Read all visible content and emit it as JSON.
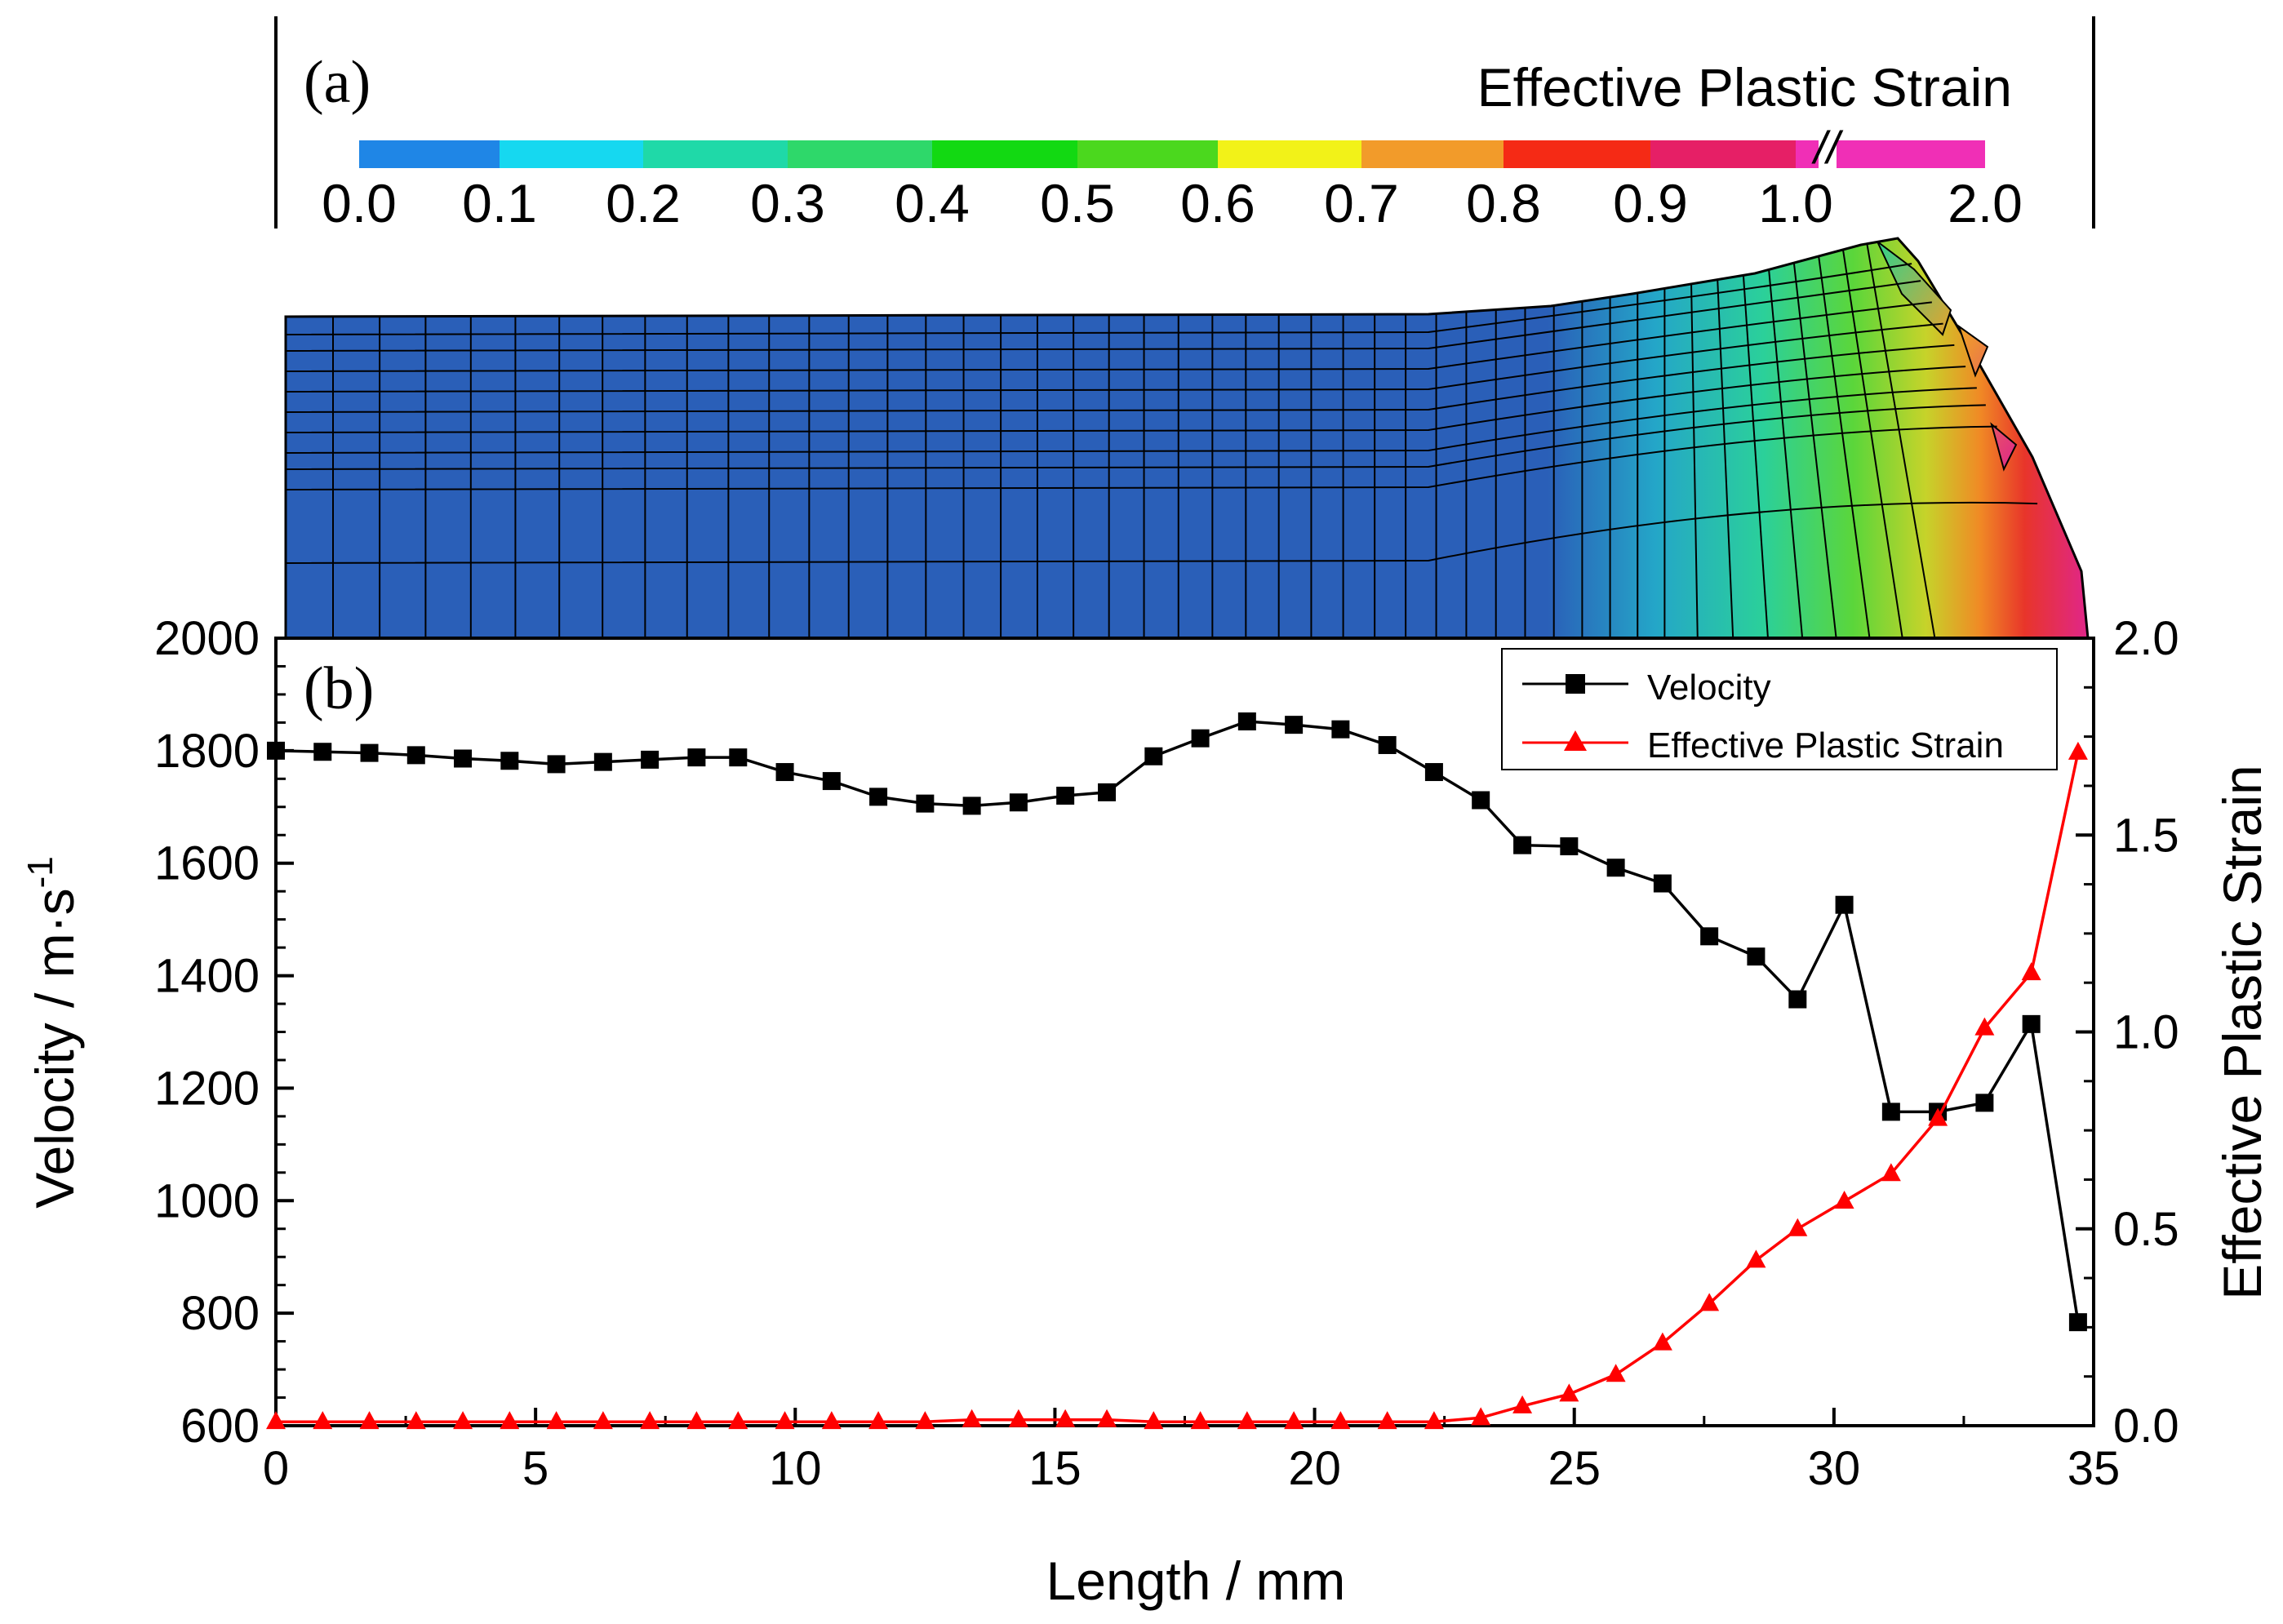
{
  "panel_a": {
    "label": "(a)",
    "colorbar_title": "Effective Plastic Strain",
    "colorbar_ticks": [
      "0.0",
      "0.1",
      "0.2",
      "0.3",
      "0.4",
      "0.5",
      "0.6",
      "0.7",
      "0.8",
      "0.9",
      "1.0",
      "2.0"
    ],
    "colorbar_colors": [
      "#1f86e6",
      "#16d8f0",
      "#1fd9a8",
      "#2ed86a",
      "#12d912",
      "#4bd81e",
      "#f2f218",
      "#f29b2a",
      "#f52a15",
      "#e61f66",
      "#f02fb6"
    ],
    "break_mark": "//"
  },
  "chart_data": {
    "type": "line",
    "label": "(b)",
    "xlabel": "Length / mm",
    "ylabel": "Velocity / m·s",
    "ylabel_superscript": "-1",
    "y2label": "Effective Plastic Strain",
    "xlim": [
      0,
      35
    ],
    "ylim": [
      600,
      2000
    ],
    "y2lim": [
      0,
      2.0
    ],
    "xticks": [
      0,
      5,
      10,
      15,
      20,
      25,
      30,
      35
    ],
    "yticks": [
      600,
      800,
      1000,
      1200,
      1400,
      1600,
      1800,
      2000
    ],
    "y2ticks": [
      "0.0",
      "0.5",
      "1.0",
      "1.5",
      "2.0"
    ],
    "legend_position": "top-right",
    "series": [
      {
        "name": "Velocity",
        "axis": "left",
        "color": "#000000",
        "marker": "square",
        "x": [
          0,
          0.9,
          1.8,
          2.7,
          3.6,
          4.5,
          5.4,
          6.3,
          7.2,
          8.1,
          8.9,
          9.8,
          10.7,
          11.6,
          12.5,
          13.4,
          14.3,
          15.2,
          16.0,
          16.9,
          17.8,
          18.7,
          19.6,
          20.5,
          21.4,
          22.3,
          23.2,
          24.0,
          24.9,
          25.8,
          26.7,
          27.6,
          28.5,
          29.3,
          30.2,
          31.1,
          32.0,
          32.9,
          33.8,
          34.7
        ],
        "values": [
          1800,
          1798,
          1796,
          1792,
          1786,
          1782,
          1776,
          1780,
          1784,
          1788,
          1788,
          1762,
          1746,
          1718,
          1706,
          1702,
          1708,
          1720,
          1726,
          1790,
          1822,
          1852,
          1846,
          1838,
          1810,
          1762,
          1712,
          1632,
          1630,
          1592,
          1564,
          1470,
          1434,
          1358,
          1526,
          1158,
          1158,
          1174,
          1314,
          784
        ]
      },
      {
        "name": "Effective Plastic Strain",
        "axis": "right",
        "color": "#ff0000",
        "marker": "triangle",
        "x": [
          0,
          0.9,
          1.8,
          2.7,
          3.6,
          4.5,
          5.4,
          6.3,
          7.2,
          8.1,
          8.9,
          9.8,
          10.7,
          11.6,
          12.5,
          13.4,
          14.3,
          15.2,
          16.0,
          16.9,
          17.8,
          18.7,
          19.6,
          20.5,
          21.4,
          22.3,
          23.2,
          24.0,
          24.9,
          25.8,
          26.7,
          27.6,
          28.5,
          29.3,
          30.2,
          31.1,
          32.0,
          32.9,
          33.8,
          34.7
        ],
        "values": [
          0.01,
          0.01,
          0.01,
          0.01,
          0.01,
          0.01,
          0.01,
          0.01,
          0.01,
          0.01,
          0.01,
          0.01,
          0.01,
          0.01,
          0.01,
          0.015,
          0.015,
          0.015,
          0.015,
          0.01,
          0.01,
          0.01,
          0.01,
          0.01,
          0.01,
          0.01,
          0.02,
          0.05,
          0.08,
          0.13,
          0.21,
          0.31,
          0.42,
          0.5,
          0.57,
          0.64,
          0.78,
          1.01,
          1.15,
          1.71
        ]
      }
    ]
  }
}
